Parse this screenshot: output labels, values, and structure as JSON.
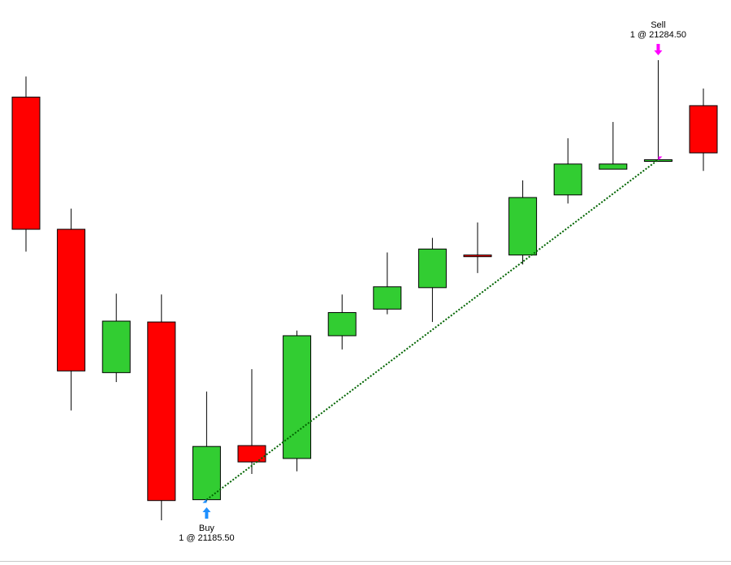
{
  "chart_data": {
    "type": "candlestick",
    "open": [
      21302.75,
      21264.25,
      21222.5,
      21237.25,
      21185.5,
      21201.25,
      21197.5,
      21233.25,
      21241,
      21247.25,
      21256.75,
      21256.75,
      21274.25,
      21281.75,
      21284.5,
      21300.25
    ],
    "high": [
      21308.75,
      21270.25,
      21245.5,
      21245.25,
      21217,
      21223.5,
      21234.75,
      21245.25,
      21257.5,
      21261.75,
      21266.25,
      21278.5,
      21290.75,
      21295.5,
      21313.5,
      21305.25
    ],
    "low": [
      21257.75,
      21211.5,
      21219.75,
      21179.5,
      21185,
      21193,
      21193.75,
      21229.25,
      21239.5,
      21237.25,
      21251.5,
      21254,
      21271.75,
      21281.75,
      21284.5,
      21281.25
    ],
    "close": [
      21264.25,
      21223,
      21237.5,
      21185.25,
      21201,
      21196.5,
      21233.25,
      21240,
      21247.5,
      21258.5,
      21256.5,
      21273.5,
      21283.25,
      21283.25,
      21284.5,
      21286.5
    ],
    "up_color": "#32cd32",
    "down_color": "#ff0000",
    "trades": [
      {
        "side": "Buy",
        "label": "1 @ 21185.50",
        "price": 21185.5,
        "color": "#1e90ff"
      },
      {
        "side": "Sell",
        "label": "1 @ 21284.50",
        "price": 21284.5,
        "color": "#ff00ff"
      }
    ],
    "trade_line_color": "#006400"
  }
}
